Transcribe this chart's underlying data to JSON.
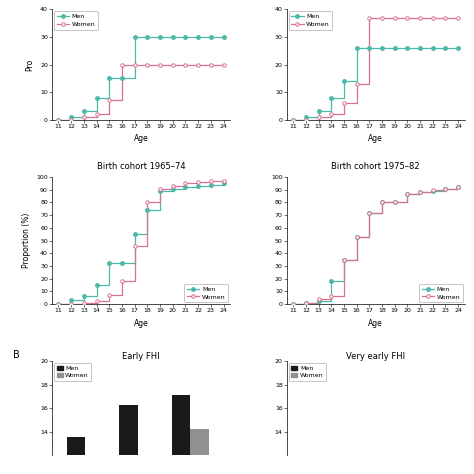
{
  "top_left": {
    "ages": [
      11,
      12,
      13,
      14,
      15,
      16,
      17,
      18,
      19,
      20,
      21,
      22,
      23,
      24
    ],
    "men": [
      0,
      1,
      3,
      8,
      15,
      15,
      30,
      30,
      30,
      30,
      30,
      30,
      30,
      30
    ],
    "women": [
      0,
      0,
      1,
      2,
      7,
      20,
      20,
      20,
      20,
      20,
      20,
      20,
      20,
      20
    ],
    "ylim": [
      0,
      40
    ],
    "yticks": [
      0,
      10,
      20,
      30,
      40
    ]
  },
  "top_right": {
    "ages": [
      11,
      12,
      13,
      14,
      15,
      16,
      17,
      18,
      19,
      20,
      21,
      22,
      23,
      24
    ],
    "men": [
      0,
      1,
      3,
      8,
      14,
      26,
      26,
      26,
      26,
      26,
      26,
      26,
      26,
      26
    ],
    "women": [
      0,
      0,
      1,
      2,
      6,
      13,
      37,
      37,
      37,
      37,
      37,
      37,
      37,
      37
    ],
    "ylim": [
      0,
      40
    ],
    "yticks": [
      0,
      10,
      20,
      30,
      40
    ]
  },
  "mid_left": {
    "title": "Birth cohort 1965–74",
    "ages": [
      11,
      12,
      13,
      14,
      15,
      16,
      17,
      18,
      19,
      20,
      21,
      22,
      23,
      24
    ],
    "men": [
      0,
      3,
      6,
      15,
      32,
      32,
      55,
      74,
      89,
      91,
      92,
      93,
      94,
      95
    ],
    "women": [
      0,
      0,
      1,
      2,
      7,
      18,
      46,
      80,
      91,
      93,
      95,
      96,
      97,
      97
    ],
    "ylim": [
      0,
      100
    ],
    "yticks": [
      0,
      10,
      20,
      30,
      40,
      50,
      60,
      70,
      80,
      90,
      100
    ],
    "ylabel": "Proportion (%)"
  },
  "mid_right": {
    "title": "Birth cohort 1975–82",
    "ages": [
      11,
      12,
      13,
      14,
      15,
      16,
      17,
      18,
      19,
      20,
      21,
      22,
      23,
      24
    ],
    "men": [
      0,
      1,
      2,
      18,
      35,
      53,
      72,
      80,
      80,
      87,
      88,
      89,
      91,
      92
    ],
    "women": [
      0,
      1,
      4,
      6,
      35,
      53,
      72,
      80,
      80,
      87,
      88,
      90,
      91,
      92
    ],
    "ylim": [
      0,
      100
    ],
    "yticks": [
      0,
      10,
      20,
      30,
      40,
      50,
      60,
      70,
      80,
      90,
      100
    ]
  },
  "bar_left": {
    "title": "Early FHI",
    "label_b": "B",
    "men_vals": [
      13.5,
      16.3,
      17.1
    ],
    "women_vals": [
      0.0,
      0.0,
      14.2
    ],
    "ylim": [
      12,
      20
    ],
    "yticks": [
      14,
      16,
      18,
      20
    ]
  },
  "bar_right": {
    "title": "Very early FHI",
    "men_vals": [],
    "women_vals": [],
    "ylim": [
      12,
      20
    ],
    "yticks": [
      14,
      16,
      18,
      20
    ]
  },
  "men_color": "#4db8a8",
  "women_color": "#d97090",
  "men_bar_color": "#1a1a1a",
  "women_bar_color": "#909090",
  "age_ticks": [
    11,
    12,
    13,
    14,
    15,
    16,
    17,
    18,
    19,
    20,
    21,
    22,
    23,
    24
  ]
}
